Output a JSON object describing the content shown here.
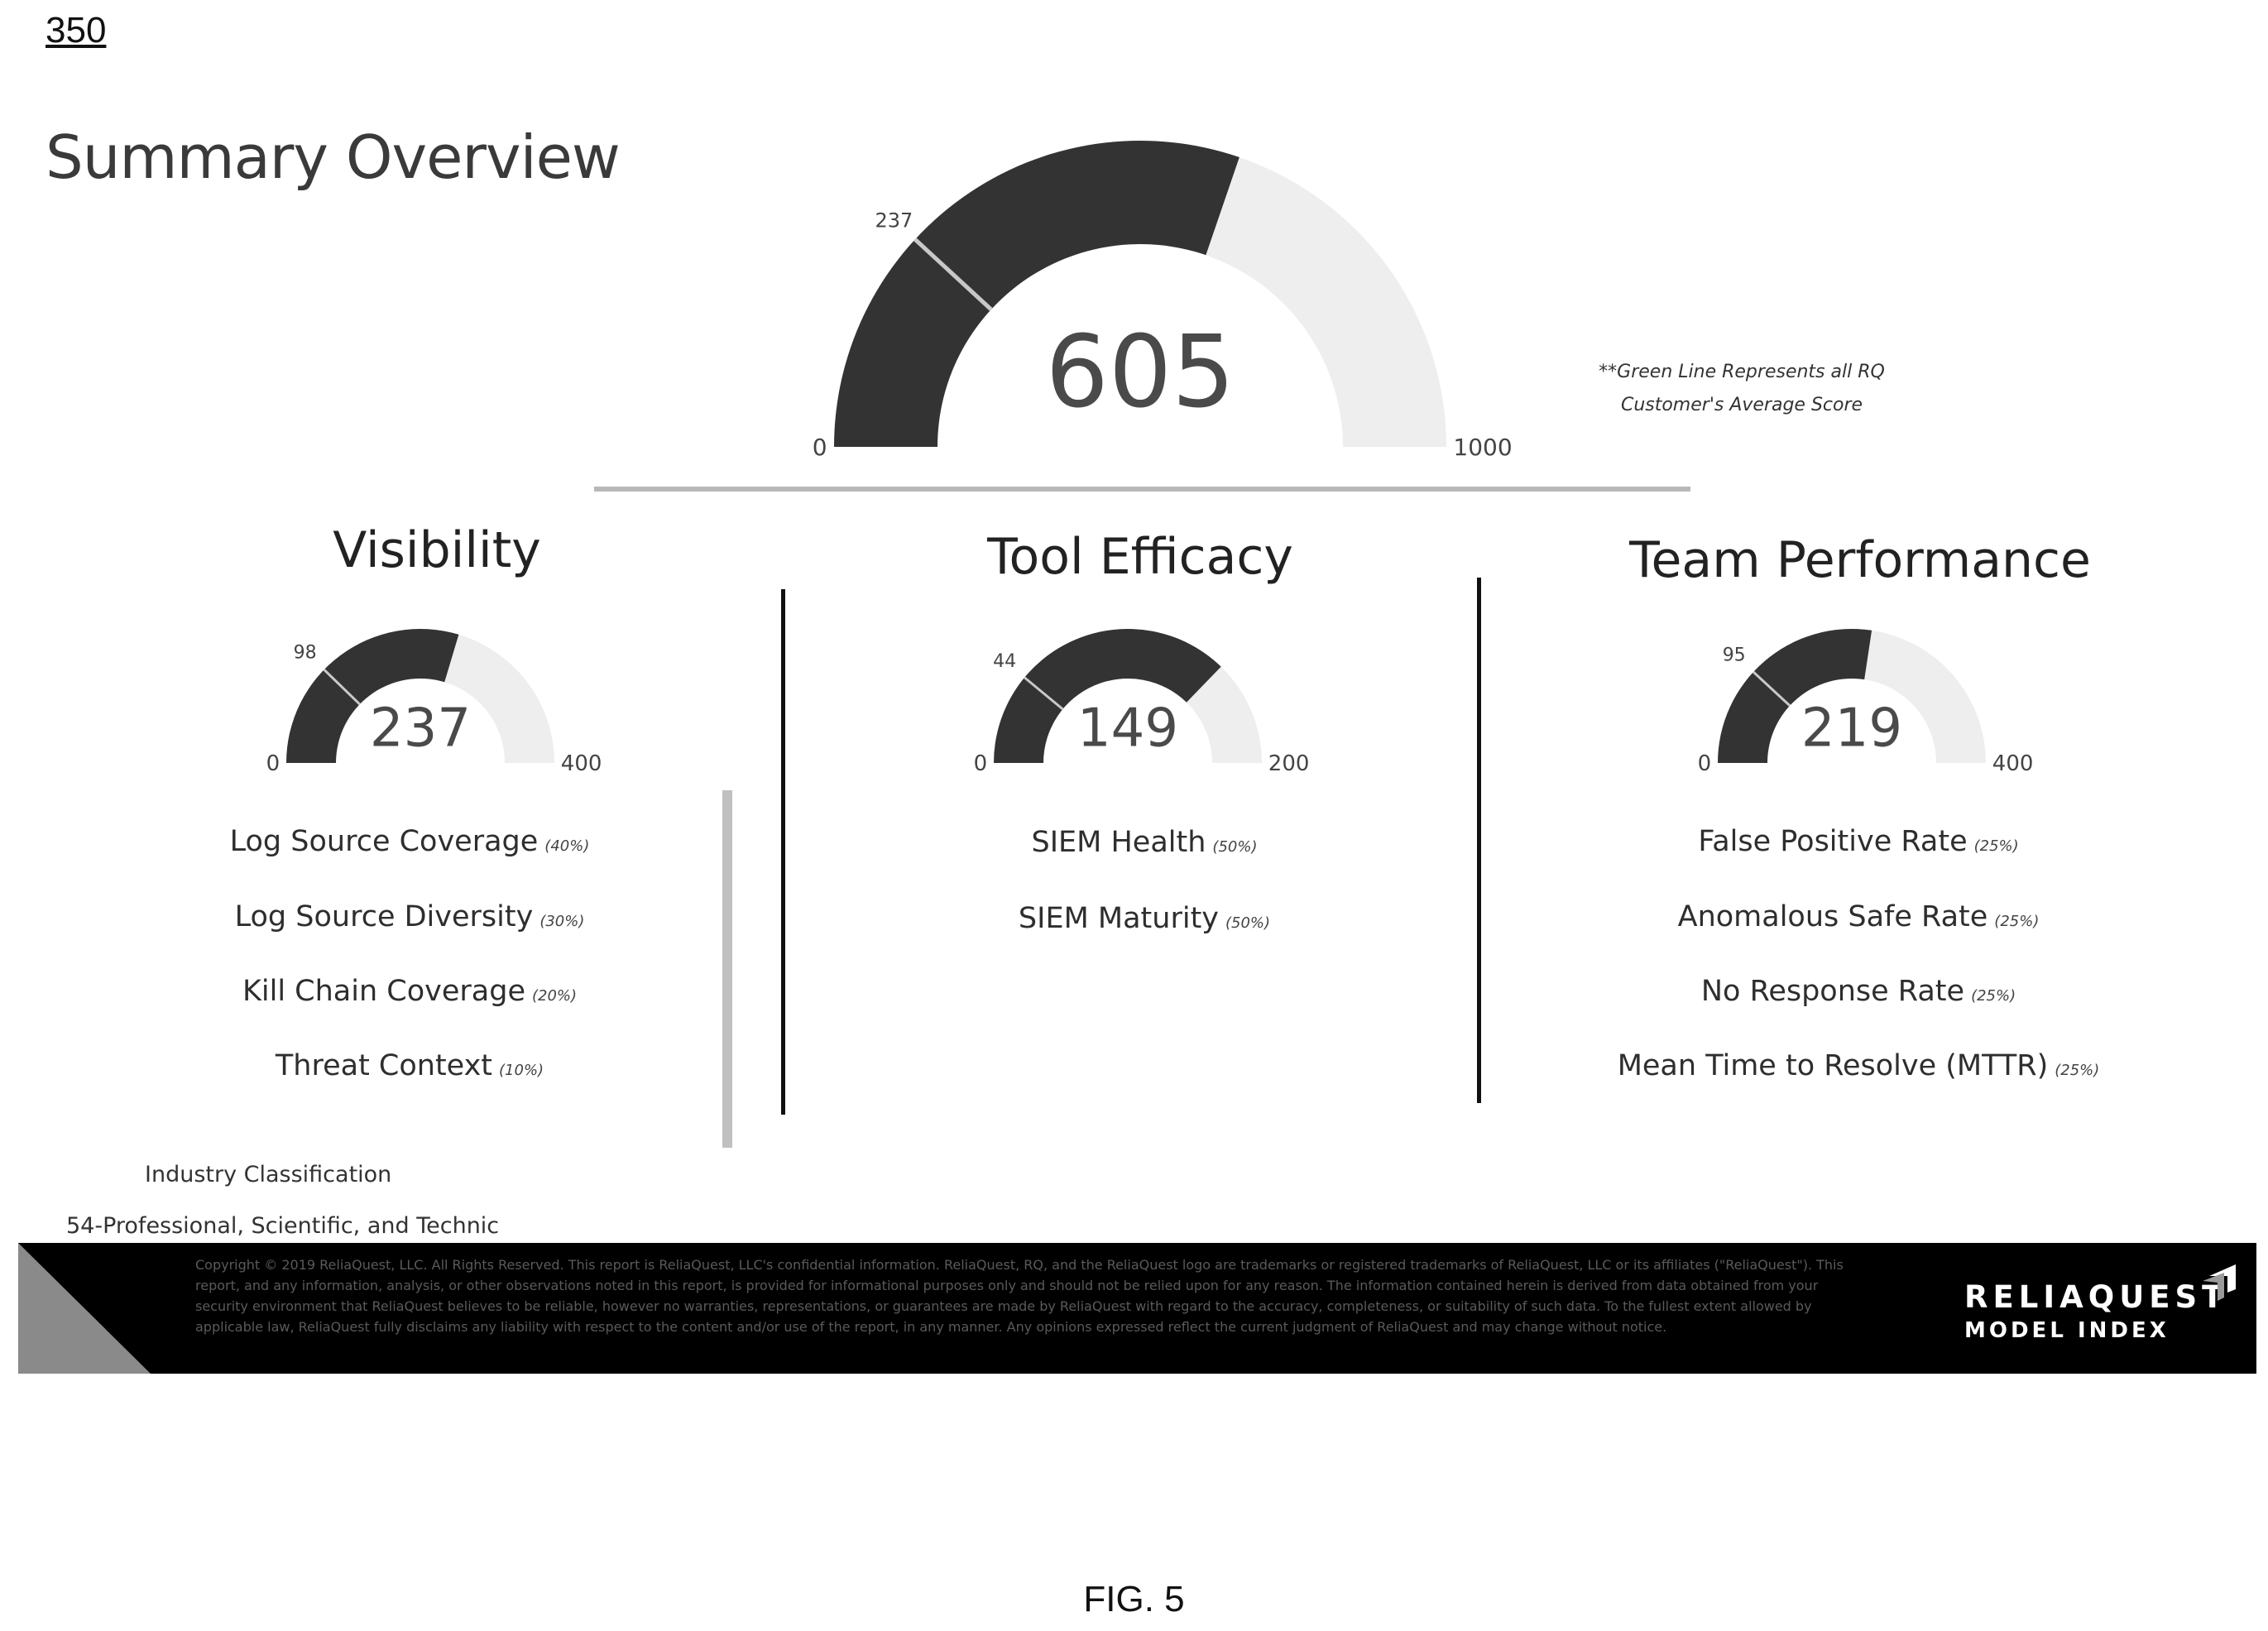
{
  "figure_number": "350",
  "title": "Summary Overview",
  "colors": {
    "filled": "#333333",
    "empty": "#eeeeee",
    "marker": "#c8c8c8"
  },
  "overall_gauge": {
    "min_label": "0",
    "max_label": "1000",
    "min": 0,
    "max": 1000,
    "value": 605,
    "value_label": "605",
    "marker": 237,
    "marker_label": "237"
  },
  "note": "**Green Line Represents all RQ Customer's Average Score",
  "sections": [
    {
      "title": "Visibility",
      "gauge": {
        "min_label": "0",
        "max_label": "400",
        "min": 0,
        "max": 400,
        "value": 237,
        "value_label": "237",
        "marker": 98,
        "marker_label": "98"
      },
      "metrics": [
        {
          "label": "Log Source Coverage",
          "weight": "(40%)"
        },
        {
          "label": "Log Source Diversity",
          "weight": "(30%)"
        },
        {
          "label": "Kill Chain Coverage",
          "weight": "(20%)"
        },
        {
          "label": "Threat Context",
          "weight": "(10%)"
        }
      ]
    },
    {
      "title": "Tool Efficacy",
      "gauge": {
        "min_label": "0",
        "max_label": "200",
        "min": 0,
        "max": 200,
        "value": 149,
        "value_label": "149",
        "marker": 44,
        "marker_label": "44"
      },
      "metrics": [
        {
          "label": "SIEM Health",
          "weight": "(50%)"
        },
        {
          "label": "SIEM Maturity",
          "weight": "(50%)"
        }
      ]
    },
    {
      "title": "Team Performance",
      "gauge": {
        "min_label": "0",
        "max_label": "400",
        "min": 0,
        "max": 400,
        "value": 219,
        "value_label": "219",
        "marker": 95,
        "marker_label": "95"
      },
      "metrics": [
        {
          "label": "False Positive Rate",
          "weight": "(25%)"
        },
        {
          "label": "Anomalous Safe Rate",
          "weight": "(25%)"
        },
        {
          "label": "No Response Rate",
          "weight": "(25%)"
        },
        {
          "label": "Mean Time to Resolve (MTTR)",
          "weight": "(25%)"
        }
      ]
    }
  ],
  "industry": {
    "label": "Industry Classification",
    "value": "54-Professional, Scientific, and Technic"
  },
  "footer": {
    "copyright": "Copyright © 2019 ReliaQuest, LLC. All Rights Reserved. This report is ReliaQuest, LLC's confidential information. ReliaQuest, RQ, and the ReliaQuest logo are trademarks or registered trademarks of ReliaQuest, LLC or its affiliates (\"ReliaQuest\"). This report, and any information, analysis, or other observations noted in this report, is provided for informational purposes only and should not be relied upon for any reason. The information contained herein is derived from data obtained from your security environment that ReliaQuest believes to be reliable, however no warranties, representations, or guarantees are made by ReliaQuest with regard to the accuracy, completeness, or suitability of such data. To the fullest extent allowed by applicable law, ReliaQuest fully disclaims any liability with respect to the content and/or use of the report, in any manner. Any opinions expressed reflect the current judgment of ReliaQuest and may change without notice.",
    "brand_name": "RELIAQUEST",
    "brand_sub": "MODEL INDEX"
  },
  "caption": "FIG. 5"
}
